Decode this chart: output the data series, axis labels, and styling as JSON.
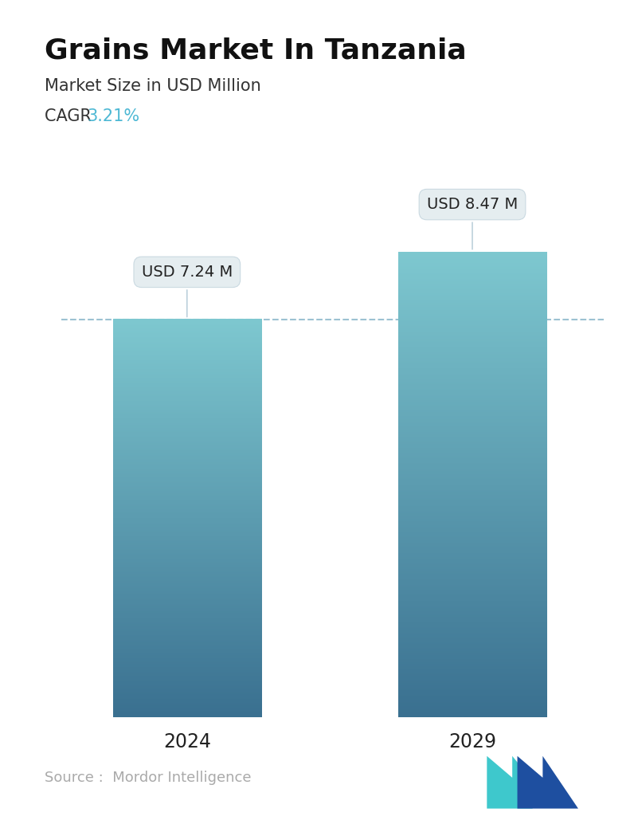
{
  "title": "Grains Market In Tanzania",
  "subtitle": "Market Size in USD Million",
  "cagr_label": "CAGR ",
  "cagr_value": "3.21%",
  "cagr_color": "#4db8d4",
  "categories": [
    "2024",
    "2029"
  ],
  "values": [
    7.24,
    8.47
  ],
  "bar_labels": [
    "USD 7.24 M",
    "USD 8.47 M"
  ],
  "bar_top_color": "#7ec8d0",
  "bar_bottom_color": "#3a7090",
  "dashed_line_value": 7.24,
  "dashed_line_color": "#5a9ab5",
  "source_text": "Source :  Mordor Intelligence",
  "source_color": "#aaaaaa",
  "bg_color": "#ffffff",
  "title_fontsize": 26,
  "subtitle_fontsize": 15,
  "cagr_fontsize": 15,
  "bar_label_fontsize": 14,
  "tick_fontsize": 17,
  "source_fontsize": 13,
  "ylim": [
    0,
    10.5
  ]
}
